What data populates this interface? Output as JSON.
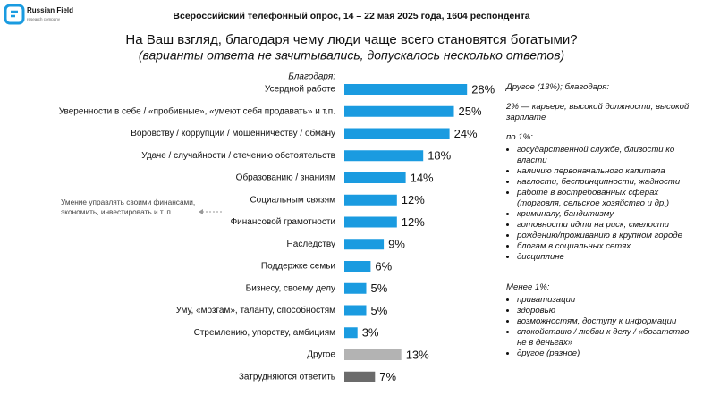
{
  "logo": {
    "name": "Russian Field",
    "tagline": "research company"
  },
  "header": "Всероссийский телефонный опрос, 14 – 22 мая 2025 года, 1604 респондента",
  "chart_data": {
    "type": "hbar",
    "title": "На Ваш взгляд, благодаря чему люди чаще всего становятся богатыми?",
    "subtitle": "(варианты ответа не зачитывались, допускалось несколько ответов)",
    "axis_label": "Благодаря:",
    "categories": [
      "Усердной работе",
      "Уверенности в себе / «пробивные», «умеют себя продавать» и т.п.",
      "Воровству / коррупции / мошенничеству / обману",
      "Удаче / случайности / стечению обстоятельств",
      "Образованию / знаниям",
      "Социальным связям",
      "Финансовой грамотности",
      "Наследству",
      "Поддержке семьи",
      "Бизнесу, своему делу",
      "Уму, «мозгам», таланту, способностям",
      "Стремлению, упорству, амбициям",
      "Другое",
      "Затрудняются ответить"
    ],
    "values": [
      28,
      25,
      24,
      18,
      14,
      12,
      12,
      9,
      6,
      5,
      5,
      3,
      13,
      7
    ],
    "value_labels": [
      "28%",
      "25%",
      "24%",
      "18%",
      "14%",
      "12%",
      "12%",
      "9%",
      "6%",
      "5%",
      "5%",
      "3%",
      "13%",
      "7%"
    ],
    "colors": [
      "#1a9be0",
      "#1a9be0",
      "#1a9be0",
      "#1a9be0",
      "#1a9be0",
      "#1a9be0",
      "#1a9be0",
      "#1a9be0",
      "#1a9be0",
      "#1a9be0",
      "#1a9be0",
      "#1a9be0",
      "#b3b3b3",
      "#6b6b6b"
    ],
    "annotation": "Умение управлять своими финансами, экономить, инвестировать и т. п."
  },
  "notes": {
    "title": "Другое (13%); благодаря:",
    "two_percent": "2% — карьере, высокой должности, высокой зарплате",
    "one_percent": {
      "heading": "по 1%:",
      "items": [
        "государственной службе, близости ко власти",
        "наличию первоначального капитала",
        "наглости, беспринципности, жадности",
        "работе в востребованных сферах (торговля, сельское хозяйство и др.)",
        "криминалу, бандитизму",
        "готовности идти на риск, смелости",
        "рождению/проживанию в крупном городе",
        "блогам в социальных сетях",
        "дисциплине"
      ]
    },
    "less_than_one": {
      "heading": "Менее 1%:",
      "items": [
        "приватизации",
        "здоровью",
        "возможностям, доступу к информации",
        "спокойствию / любви к делу / «богатство не в деньгах»",
        "другое (разное)"
      ]
    }
  }
}
